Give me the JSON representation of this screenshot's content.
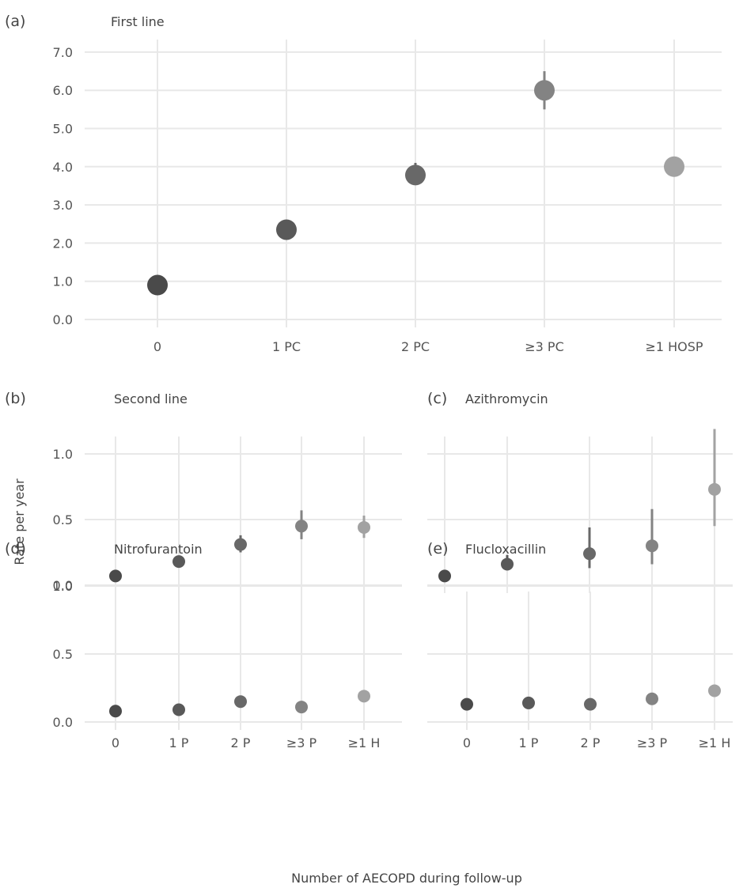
{
  "figure": {
    "ylabel": "Rate per year",
    "xlabel": "Number of AECOPD during follow-up"
  },
  "point_colors": [
    "#4a4a4a",
    "#595959",
    "#686868",
    "#838383",
    "#a2a2a2"
  ],
  "chart_data": [
    {
      "type": "scatter",
      "letter": "(a)",
      "title": "First line",
      "categories": [
        "0",
        "1 PC",
        "2 PC",
        "≥3 PC",
        "≥1 HOSP"
      ],
      "ylim": [
        0,
        7
      ],
      "yticks": [
        "0.0",
        "1.0",
        "2.0",
        "3.0",
        "4.0",
        "5.0",
        "6.0",
        "7.0"
      ],
      "ytick_values": [
        0,
        1,
        2,
        3,
        4,
        5,
        6,
        7
      ],
      "values": [
        0.9,
        2.35,
        3.78,
        6.0,
        4.0
      ],
      "ci_low": [
        0.87,
        2.3,
        3.72,
        5.5,
        3.95
      ],
      "ci_high": [
        0.93,
        2.4,
        4.1,
        6.5,
        4.05
      ],
      "show_xticks": true,
      "show_yticks": true,
      "grid": true
    },
    {
      "type": "scatter",
      "letter": "(b)",
      "title": "Second line",
      "categories": [
        "0",
        "1 P",
        "2 P",
        "≥3 P",
        "≥1 H"
      ],
      "ylim": [
        0,
        1.25
      ],
      "yticks": [
        "0.0",
        "0.5",
        "1.0"
      ],
      "ytick_values": [
        0,
        0.5,
        1.0
      ],
      "values": [
        0.07,
        0.18,
        0.31,
        0.45,
        0.44
      ],
      "ci_low": [
        0.06,
        0.16,
        0.25,
        0.35,
        0.36
      ],
      "ci_high": [
        0.08,
        0.2,
        0.38,
        0.57,
        0.53
      ],
      "show_xticks": false,
      "show_yticks": true,
      "grid": true
    },
    {
      "type": "scatter",
      "letter": "(c)",
      "title": "Azithromycin",
      "categories": [
        "0",
        "1 P",
        "2 P",
        "≥3 P",
        "≥1 H"
      ],
      "ylim": [
        0,
        1.25
      ],
      "yticks": [
        "0.0",
        "0.5",
        "1.0"
      ],
      "ytick_values": [
        0,
        0.5,
        1.0
      ],
      "values": [
        0.07,
        0.16,
        0.24,
        0.3,
        0.73
      ],
      "ci_low": [
        0.06,
        0.12,
        0.13,
        0.16,
        0.45
      ],
      "ci_high": [
        0.08,
        0.23,
        0.44,
        0.58,
        1.19
      ],
      "show_xticks": false,
      "show_yticks": false,
      "grid": true
    },
    {
      "type": "scatter",
      "letter": "(d)",
      "title": "Nitrofurantoin",
      "categories": [
        "0",
        "1 P",
        "2 P",
        "≥3 P",
        "≥1 H"
      ],
      "ylim": [
        0,
        1.25
      ],
      "yticks": [
        "0.0",
        "0.5",
        "1.0"
      ],
      "ytick_values": [
        0,
        0.5,
        1.0
      ],
      "values": [
        0.08,
        0.09,
        0.15,
        0.11,
        0.19
      ],
      "ci_low": [
        0.07,
        0.08,
        0.12,
        0.1,
        0.17
      ],
      "ci_high": [
        0.09,
        0.1,
        0.18,
        0.12,
        0.21
      ],
      "show_xticks": true,
      "show_yticks": true,
      "grid": true
    },
    {
      "type": "scatter",
      "letter": "(e)",
      "title": "Flucloxacillin",
      "categories": [
        "0",
        "1 P",
        "2 P",
        "≥3 P",
        "≥1 H"
      ],
      "ylim": [
        0,
        1.25
      ],
      "yticks": [
        "0.0",
        "0.5",
        "1.0"
      ],
      "ytick_values": [
        0,
        0.5,
        1.0
      ],
      "values": [
        0.13,
        0.14,
        0.13,
        0.17,
        0.23
      ],
      "ci_low": [
        0.12,
        0.13,
        0.12,
        0.15,
        0.21
      ],
      "ci_high": [
        0.14,
        0.15,
        0.14,
        0.19,
        0.25
      ],
      "show_xticks": true,
      "show_yticks": false,
      "grid": true
    }
  ]
}
